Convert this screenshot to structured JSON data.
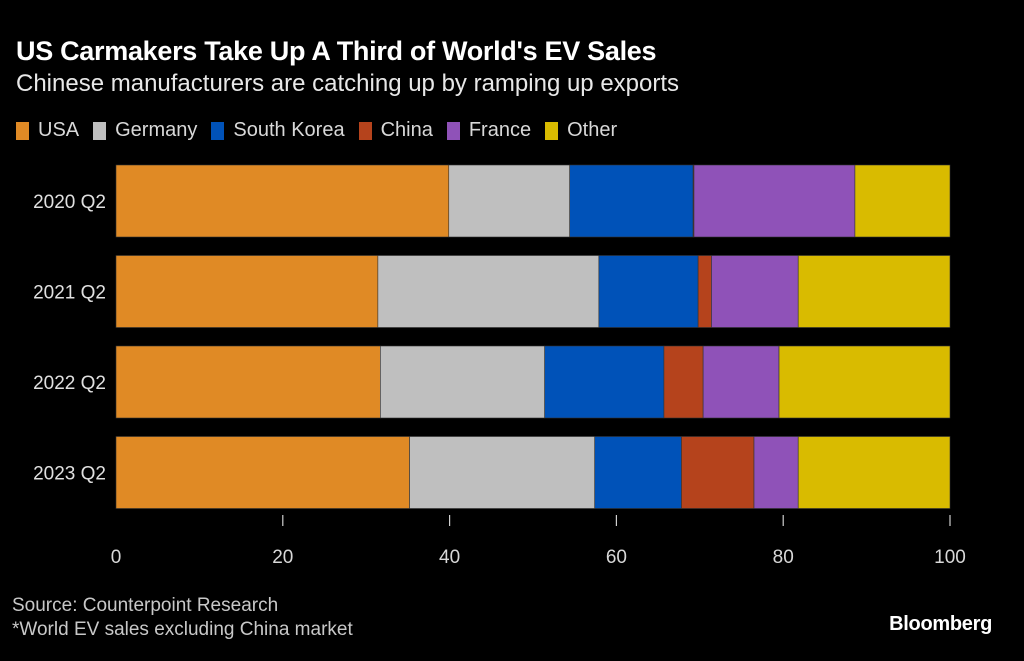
{
  "chart_data": {
    "type": "bar",
    "orientation": "horizontal",
    "stacked": true,
    "title": "US Carmakers Take Up A Third of World's EV Sales",
    "subtitle": "Chinese manufacturers are catching up by ramping up exports",
    "categories": [
      "2020 Q2",
      "2021 Q2",
      "2022 Q2",
      "2023 Q2"
    ],
    "series": [
      {
        "name": "USA",
        "color": "#e08a25",
        "values": [
          39.9,
          31.4,
          31.7,
          35.2
        ]
      },
      {
        "name": "Germany",
        "color": "#bfbfbf",
        "values": [
          14.5,
          26.5,
          19.7,
          22.2
        ]
      },
      {
        "name": "South Korea",
        "color": "#0052b8",
        "values": [
          14.8,
          11.9,
          14.3,
          10.4
        ]
      },
      {
        "name": "China",
        "color": "#b5431c",
        "values": [
          0.1,
          1.6,
          4.7,
          8.7
        ]
      },
      {
        "name": "France",
        "color": "#8f52b8",
        "values": [
          19.3,
          10.4,
          9.1,
          5.3
        ]
      },
      {
        "name": "Other",
        "color": "#d9bb00",
        "values": [
          11.4,
          18.2,
          20.5,
          18.2
        ]
      }
    ],
    "xlabel": "",
    "ylabel": "",
    "xlim": [
      0,
      100
    ],
    "xticks": [
      0,
      20,
      40,
      60,
      80,
      100
    ],
    "xtick_labels": [
      "0",
      "20",
      "40",
      "60",
      "80",
      "100"
    ],
    "grid": false,
    "legend_position": "top-left"
  },
  "footer": {
    "source": "Source: Counterpoint Research",
    "note": "*World EV sales excluding China market",
    "brand": "Bloomberg"
  }
}
